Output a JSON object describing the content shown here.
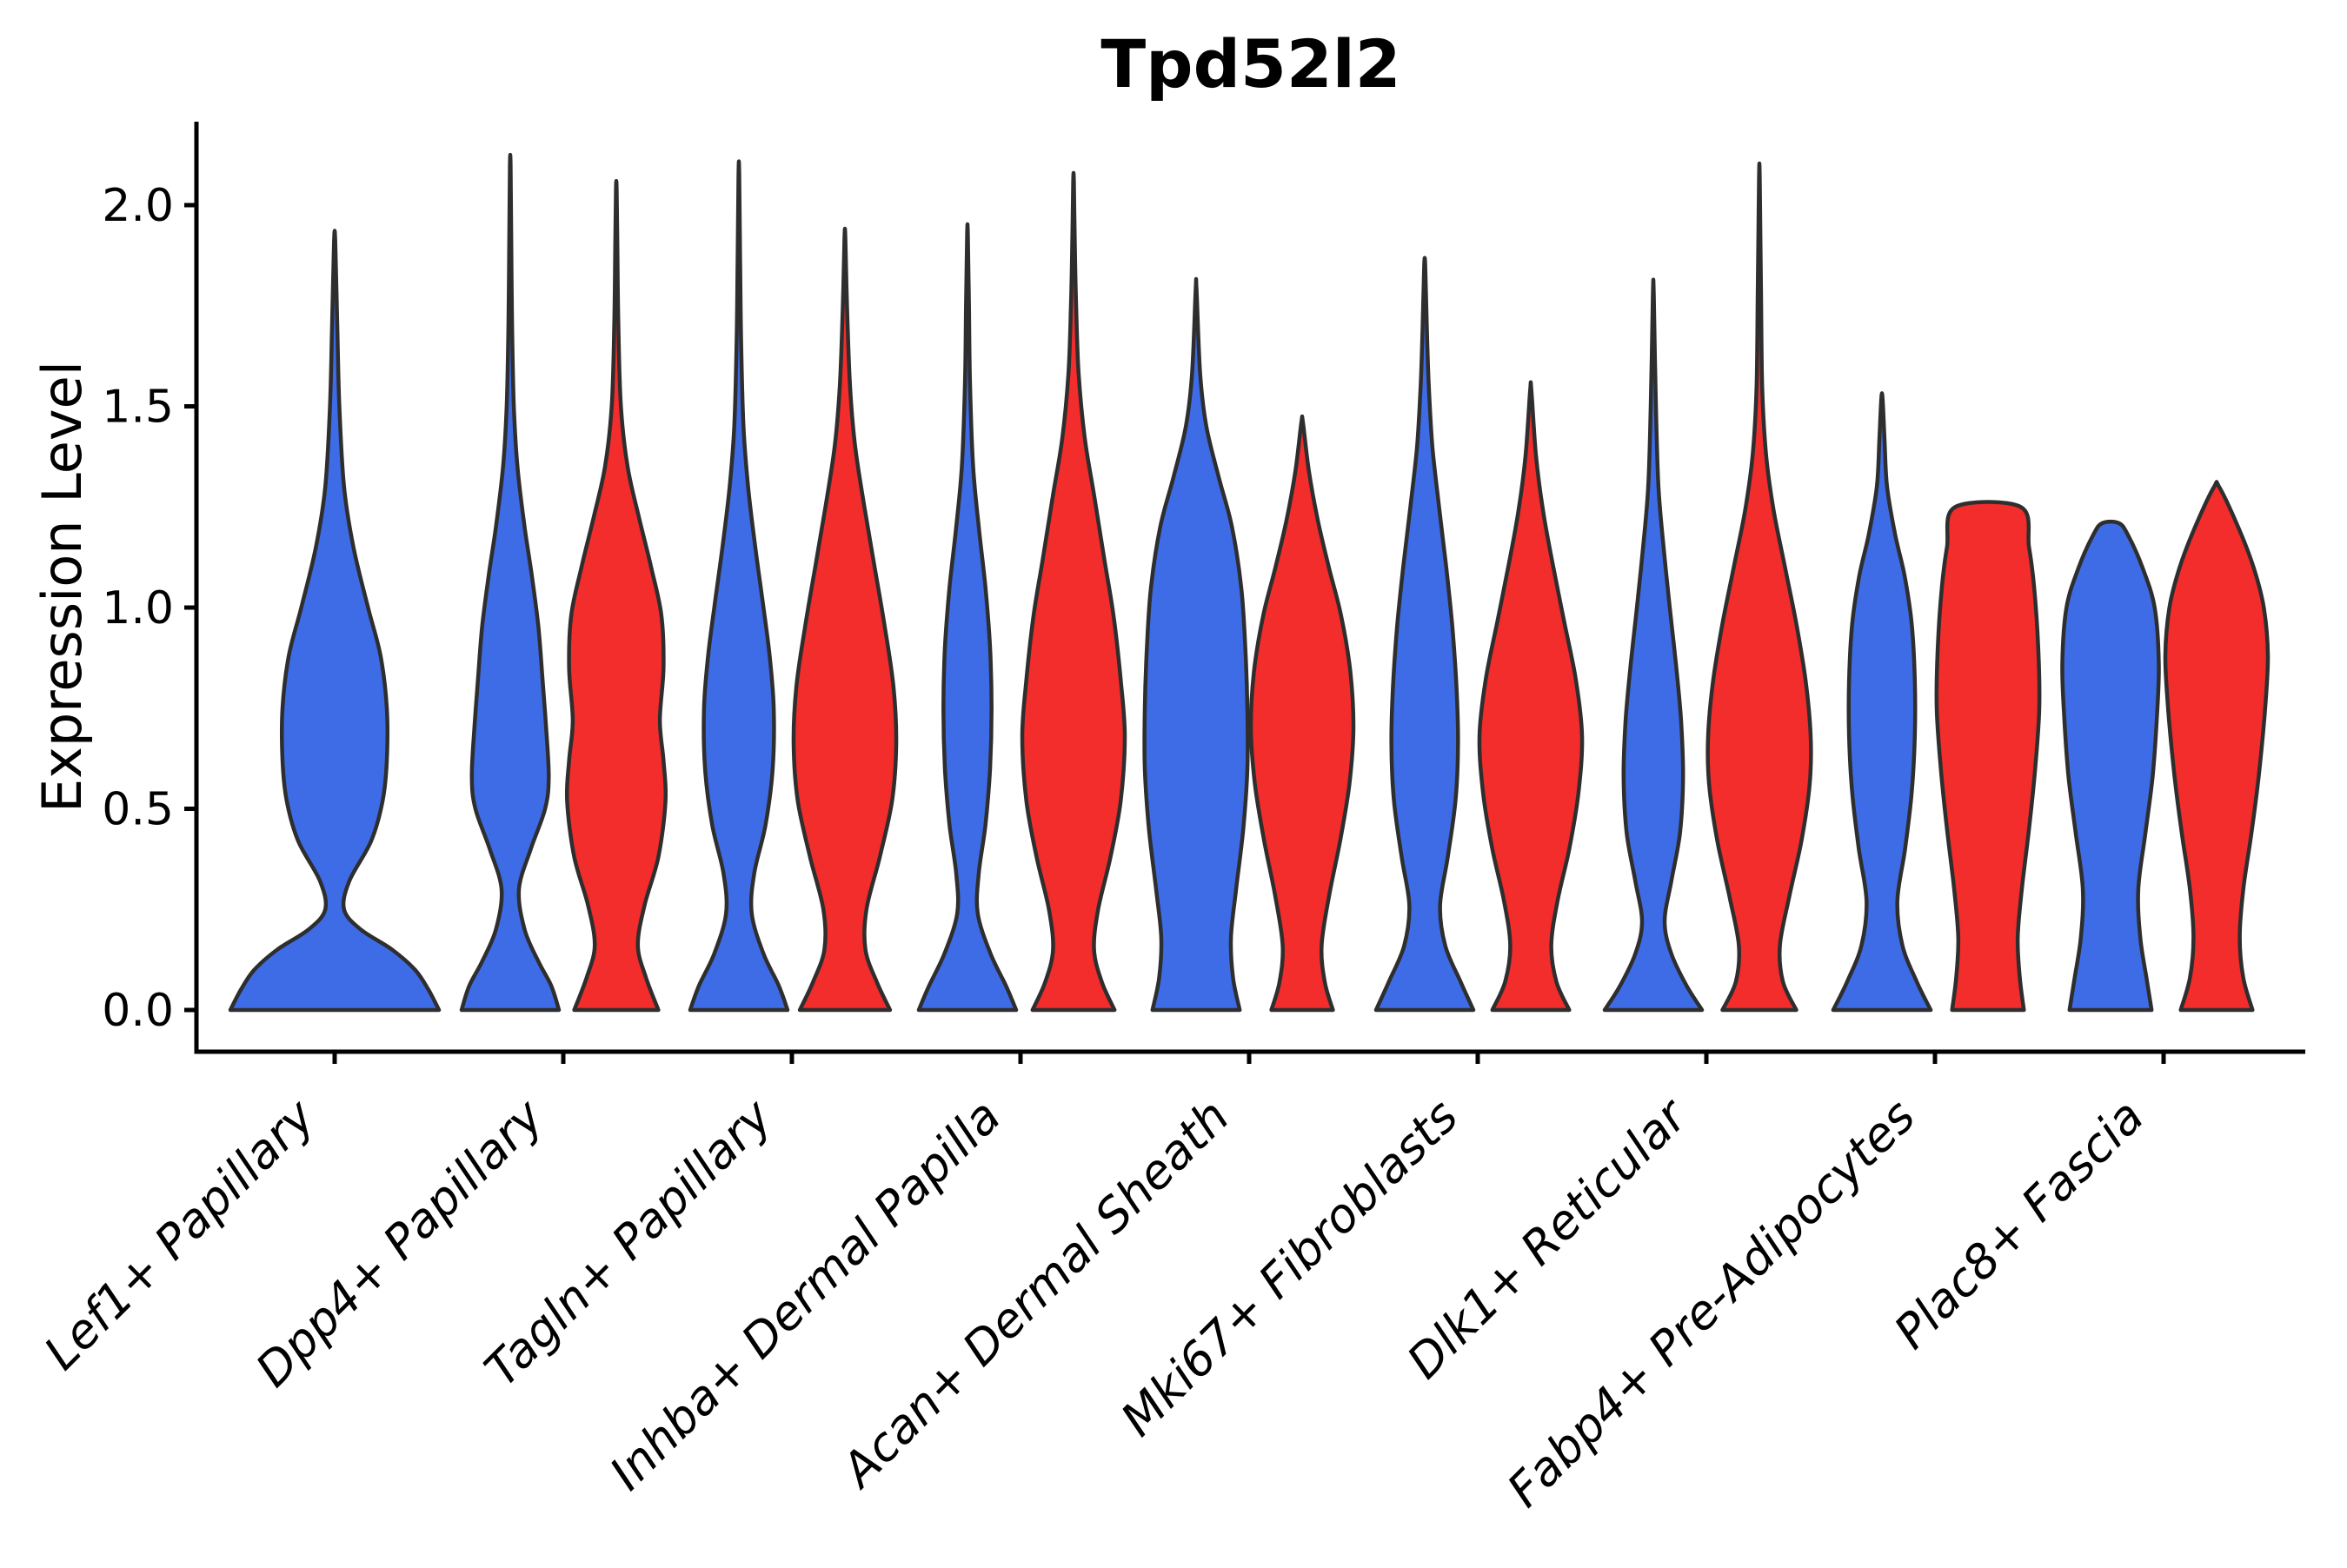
{
  "page": {
    "background": "#FFFFFF"
  },
  "chart_data": {
    "type": "violin",
    "title": "Tpd52l2",
    "ylabel": "Expression Level",
    "xlabel": "",
    "ylim": [
      -0.1,
      2.21
    ],
    "yticks": [
      0.0,
      0.5,
      1.0,
      1.5,
      2.0
    ],
    "ytick_labels": [
      "0.0",
      "0.5",
      "1.0",
      "1.5",
      "2.0"
    ],
    "grid": false,
    "legend": "none",
    "colors": {
      "blue": "#3E6CE6",
      "red": "#F32C2C",
      "outline": "#2E2E2E",
      "axis": "#000000"
    },
    "categories": [
      "Lef1+ Papillary",
      "Dpp4+ Papillary",
      "Tagln+ Papillary",
      "Inhba+ Dermal Papilla",
      "Acan+ Dermal Sheath",
      "Mki67+ Fibroblasts",
      "Dlk1+ Reticular",
      "Fabp4+ Pre-Adipocytes",
      "Plac8+ Fascia"
    ],
    "series": [
      {
        "name": "blue",
        "color": "#3E6CE6",
        "max_expression": [
          1.91,
          2.1,
          2.08,
          1.93,
          1.79,
          1.85,
          1.78,
          1.52,
          1.21
        ]
      },
      {
        "name": "red",
        "color": "#F32C2C",
        "max_expression": [
          null,
          2.04,
          1.92,
          2.06,
          1.46,
          1.54,
          2.07,
          1.25,
          1.3
        ]
      }
    ],
    "violins": [
      {
        "group": 0,
        "color": "blue",
        "width": "full",
        "max": 1.91,
        "profile": [
          [
            0,
            1.0
          ],
          [
            0.05,
            0.9
          ],
          [
            0.1,
            0.77
          ],
          [
            0.15,
            0.55
          ],
          [
            0.2,
            0.25
          ],
          [
            0.25,
            0.09
          ],
          [
            0.32,
            0.14
          ],
          [
            0.42,
            0.35
          ],
          [
            0.52,
            0.46
          ],
          [
            0.62,
            0.5
          ],
          [
            0.75,
            0.5
          ],
          [
            0.88,
            0.44
          ],
          [
            1.0,
            0.32
          ],
          [
            1.15,
            0.18
          ],
          [
            1.3,
            0.09
          ],
          [
            1.5,
            0.045
          ],
          [
            1.7,
            0.025
          ],
          [
            1.91,
            0.006
          ]
        ]
      },
      {
        "group": 1,
        "color": "blue",
        "width": "half",
        "max": 2.1,
        "profile": [
          [
            0,
            0.95
          ],
          [
            0.06,
            0.8
          ],
          [
            0.12,
            0.55
          ],
          [
            0.2,
            0.28
          ],
          [
            0.3,
            0.17
          ],
          [
            0.4,
            0.4
          ],
          [
            0.5,
            0.68
          ],
          [
            0.58,
            0.75
          ],
          [
            0.7,
            0.7
          ],
          [
            0.82,
            0.63
          ],
          [
            0.95,
            0.55
          ],
          [
            1.08,
            0.42
          ],
          [
            1.2,
            0.28
          ],
          [
            1.35,
            0.14
          ],
          [
            1.5,
            0.07
          ],
          [
            1.7,
            0.035
          ],
          [
            1.9,
            0.02
          ],
          [
            2.1,
            0.006
          ]
        ]
      },
      {
        "group": 1,
        "color": "red",
        "width": "half",
        "max": 2.04,
        "profile": [
          [
            0,
            0.82
          ],
          [
            0.08,
            0.58
          ],
          [
            0.16,
            0.42
          ],
          [
            0.26,
            0.55
          ],
          [
            0.38,
            0.82
          ],
          [
            0.52,
            0.96
          ],
          [
            0.62,
            0.92
          ],
          [
            0.72,
            0.85
          ],
          [
            0.85,
            0.92
          ],
          [
            0.98,
            0.88
          ],
          [
            1.1,
            0.68
          ],
          [
            1.22,
            0.45
          ],
          [
            1.35,
            0.22
          ],
          [
            1.5,
            0.09
          ],
          [
            1.7,
            0.04
          ],
          [
            1.88,
            0.022
          ],
          [
            2.04,
            0.006
          ]
        ]
      },
      {
        "group": 2,
        "color": "blue",
        "width": "half",
        "max": 2.08,
        "profile": [
          [
            0,
            0.95
          ],
          [
            0.06,
            0.78
          ],
          [
            0.14,
            0.48
          ],
          [
            0.24,
            0.25
          ],
          [
            0.34,
            0.3
          ],
          [
            0.46,
            0.52
          ],
          [
            0.6,
            0.66
          ],
          [
            0.75,
            0.68
          ],
          [
            0.88,
            0.6
          ],
          [
            1.0,
            0.48
          ],
          [
            1.15,
            0.32
          ],
          [
            1.3,
            0.18
          ],
          [
            1.45,
            0.09
          ],
          [
            1.65,
            0.045
          ],
          [
            1.85,
            0.025
          ],
          [
            2.08,
            0.006
          ]
        ]
      },
      {
        "group": 2,
        "color": "red",
        "width": "half",
        "max": 1.92,
        "profile": [
          [
            0,
            0.88
          ],
          [
            0.07,
            0.62
          ],
          [
            0.15,
            0.4
          ],
          [
            0.25,
            0.42
          ],
          [
            0.38,
            0.68
          ],
          [
            0.52,
            0.92
          ],
          [
            0.66,
            1.0
          ],
          [
            0.8,
            0.95
          ],
          [
            0.95,
            0.78
          ],
          [
            1.1,
            0.58
          ],
          [
            1.25,
            0.38
          ],
          [
            1.4,
            0.2
          ],
          [
            1.55,
            0.1
          ],
          [
            1.75,
            0.04
          ],
          [
            1.92,
            0.008
          ]
        ]
      },
      {
        "group": 3,
        "color": "blue",
        "width": "half",
        "max": 1.93,
        "profile": [
          [
            0,
            0.95
          ],
          [
            0.06,
            0.75
          ],
          [
            0.14,
            0.45
          ],
          [
            0.24,
            0.2
          ],
          [
            0.34,
            0.22
          ],
          [
            0.46,
            0.35
          ],
          [
            0.6,
            0.44
          ],
          [
            0.75,
            0.47
          ],
          [
            0.9,
            0.44
          ],
          [
            1.05,
            0.35
          ],
          [
            1.2,
            0.22
          ],
          [
            1.35,
            0.11
          ],
          [
            1.55,
            0.05
          ],
          [
            1.75,
            0.028
          ],
          [
            1.93,
            0.006
          ]
        ]
      },
      {
        "group": 3,
        "color": "red",
        "width": "half",
        "max": 2.06,
        "profile": [
          [
            0,
            0.8
          ],
          [
            0.07,
            0.55
          ],
          [
            0.15,
            0.4
          ],
          [
            0.25,
            0.48
          ],
          [
            0.38,
            0.72
          ],
          [
            0.52,
            0.92
          ],
          [
            0.68,
            1.0
          ],
          [
            0.82,
            0.92
          ],
          [
            0.98,
            0.78
          ],
          [
            1.12,
            0.6
          ],
          [
            1.28,
            0.4
          ],
          [
            1.42,
            0.22
          ],
          [
            1.58,
            0.1
          ],
          [
            1.75,
            0.05
          ],
          [
            1.9,
            0.025
          ],
          [
            2.06,
            0.006
          ]
        ]
      },
      {
        "group": 4,
        "color": "blue",
        "width": "half",
        "max": 1.79,
        "profile": [
          [
            0,
            0.85
          ],
          [
            0.08,
            0.72
          ],
          [
            0.18,
            0.68
          ],
          [
            0.3,
            0.78
          ],
          [
            0.45,
            0.92
          ],
          [
            0.6,
            1.0
          ],
          [
            0.75,
            1.0
          ],
          [
            0.9,
            0.96
          ],
          [
            1.05,
            0.88
          ],
          [
            1.2,
            0.7
          ],
          [
            1.32,
            0.45
          ],
          [
            1.45,
            0.2
          ],
          [
            1.58,
            0.08
          ],
          [
            1.79,
            0.008
          ]
        ]
      },
      {
        "group": 4,
        "color": "red",
        "width": "half",
        "max": 1.46,
        "profile": [
          [
            0,
            0.6
          ],
          [
            0.07,
            0.44
          ],
          [
            0.16,
            0.38
          ],
          [
            0.28,
            0.52
          ],
          [
            0.42,
            0.74
          ],
          [
            0.56,
            0.92
          ],
          [
            0.7,
            1.0
          ],
          [
            0.84,
            0.94
          ],
          [
            0.98,
            0.76
          ],
          [
            1.1,
            0.52
          ],
          [
            1.22,
            0.3
          ],
          [
            1.34,
            0.13
          ],
          [
            1.46,
            0.015
          ]
        ]
      },
      {
        "group": 5,
        "color": "blue",
        "width": "half",
        "max": 1.85,
        "profile": [
          [
            0,
            0.95
          ],
          [
            0.07,
            0.7
          ],
          [
            0.16,
            0.4
          ],
          [
            0.26,
            0.3
          ],
          [
            0.38,
            0.45
          ],
          [
            0.52,
            0.6
          ],
          [
            0.66,
            0.65
          ],
          [
            0.8,
            0.62
          ],
          [
            0.95,
            0.54
          ],
          [
            1.1,
            0.42
          ],
          [
            1.25,
            0.28
          ],
          [
            1.4,
            0.15
          ],
          [
            1.55,
            0.08
          ],
          [
            1.7,
            0.04
          ],
          [
            1.85,
            0.01
          ]
        ]
      },
      {
        "group": 5,
        "color": "red",
        "width": "half",
        "max": 1.54,
        "profile": [
          [
            0,
            0.75
          ],
          [
            0.07,
            0.5
          ],
          [
            0.16,
            0.4
          ],
          [
            0.27,
            0.52
          ],
          [
            0.4,
            0.75
          ],
          [
            0.54,
            0.93
          ],
          [
            0.68,
            1.0
          ],
          [
            0.82,
            0.88
          ],
          [
            0.96,
            0.66
          ],
          [
            1.1,
            0.44
          ],
          [
            1.24,
            0.24
          ],
          [
            1.38,
            0.1
          ],
          [
            1.54,
            0.012
          ]
        ]
      },
      {
        "group": 6,
        "color": "blue",
        "width": "half",
        "max": 1.78,
        "profile": [
          [
            0,
            0.95
          ],
          [
            0.06,
            0.65
          ],
          [
            0.14,
            0.35
          ],
          [
            0.22,
            0.22
          ],
          [
            0.32,
            0.35
          ],
          [
            0.44,
            0.52
          ],
          [
            0.58,
            0.58
          ],
          [
            0.72,
            0.54
          ],
          [
            0.86,
            0.44
          ],
          [
            1.0,
            0.32
          ],
          [
            1.15,
            0.2
          ],
          [
            1.3,
            0.1
          ],
          [
            1.5,
            0.05
          ],
          [
            1.78,
            0.008
          ]
        ]
      },
      {
        "group": 6,
        "color": "red",
        "width": "half",
        "max": 2.07,
        "profile": [
          [
            0,
            0.72
          ],
          [
            0.07,
            0.46
          ],
          [
            0.16,
            0.4
          ],
          [
            0.28,
            0.58
          ],
          [
            0.42,
            0.82
          ],
          [
            0.56,
            0.98
          ],
          [
            0.68,
            1.0
          ],
          [
            0.82,
            0.9
          ],
          [
            0.96,
            0.72
          ],
          [
            1.1,
            0.5
          ],
          [
            1.24,
            0.28
          ],
          [
            1.38,
            0.13
          ],
          [
            1.55,
            0.055
          ],
          [
            1.8,
            0.03
          ],
          [
            2.07,
            0.006
          ]
        ]
      },
      {
        "group": 7,
        "color": "blue",
        "width": "half",
        "max": 1.52,
        "profile": [
          [
            0,
            0.95
          ],
          [
            0.07,
            0.68
          ],
          [
            0.16,
            0.4
          ],
          [
            0.27,
            0.3
          ],
          [
            0.4,
            0.45
          ],
          [
            0.54,
            0.58
          ],
          [
            0.68,
            0.64
          ],
          [
            0.82,
            0.64
          ],
          [
            0.96,
            0.58
          ],
          [
            1.08,
            0.44
          ],
          [
            1.18,
            0.26
          ],
          [
            1.3,
            0.1
          ],
          [
            1.42,
            0.05
          ],
          [
            1.52,
            0.012
          ]
        ]
      },
      {
        "group": 7,
        "color": "red",
        "width": "half",
        "max": 1.25,
        "profile": [
          [
            0,
            0.7
          ],
          [
            0.08,
            0.62
          ],
          [
            0.18,
            0.58
          ],
          [
            0.3,
            0.66
          ],
          [
            0.45,
            0.8
          ],
          [
            0.6,
            0.92
          ],
          [
            0.75,
            1.0
          ],
          [
            0.9,
            0.98
          ],
          [
            1.05,
            0.9
          ],
          [
            1.15,
            0.8
          ],
          [
            1.25,
            0.64
          ]
        ]
      },
      {
        "group": 8,
        "color": "blue",
        "width": "half",
        "max": 1.21,
        "profile": [
          [
            0,
            0.8
          ],
          [
            0.08,
            0.7
          ],
          [
            0.18,
            0.58
          ],
          [
            0.3,
            0.54
          ],
          [
            0.44,
            0.68
          ],
          [
            0.58,
            0.82
          ],
          [
            0.72,
            0.9
          ],
          [
            0.86,
            0.94
          ],
          [
            1.0,
            0.86
          ],
          [
            1.1,
            0.62
          ],
          [
            1.18,
            0.34
          ],
          [
            1.21,
            0.16
          ]
        ]
      },
      {
        "group": 8,
        "color": "red",
        "width": "half",
        "max": 1.3,
        "profile": [
          [
            0,
            0.7
          ],
          [
            0.08,
            0.52
          ],
          [
            0.18,
            0.45
          ],
          [
            0.3,
            0.52
          ],
          [
            0.44,
            0.68
          ],
          [
            0.58,
            0.82
          ],
          [
            0.74,
            0.94
          ],
          [
            0.88,
            1.0
          ],
          [
            1.0,
            0.92
          ],
          [
            1.1,
            0.72
          ],
          [
            1.2,
            0.42
          ],
          [
            1.3,
            0.05
          ]
        ]
      }
    ]
  }
}
